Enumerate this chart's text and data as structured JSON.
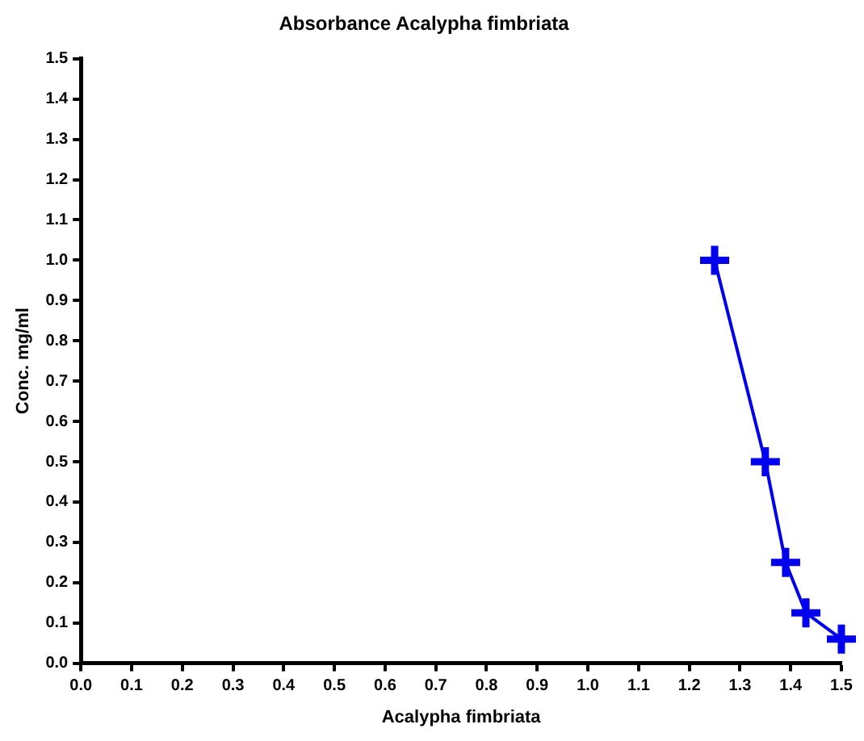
{
  "chart_data": {
    "type": "line",
    "title": "Absorbance Acalypha fimbriata",
    "xlabel": "Acalypha fimbriata",
    "ylabel": "Conc. mg/ml",
    "x": [
      1.25,
      1.35,
      1.39,
      1.43,
      1.5
    ],
    "series": [
      {
        "color": "#0000ee",
        "values": [
          1.0,
          0.5,
          0.25,
          0.125,
          0.06
        ]
      }
    ],
    "xlim": [
      0,
      1.5
    ],
    "xticks": [
      {
        "value": 0,
        "label": "0.0"
      },
      0.1,
      0.2,
      0.3,
      0.4,
      0.5,
      0.6,
      0.7,
      0.8,
      0.9,
      {
        "value": 1,
        "label": "1.0"
      },
      1.1,
      1.2,
      1.3,
      1.4,
      1.5
    ],
    "ylim": [
      0,
      1.5
    ],
    "yticks": [
      {
        "value": 0,
        "label": "0.0"
      },
      0.1,
      0.2,
      0.3,
      0.4,
      0.5,
      0.6,
      0.7,
      0.8,
      0.9,
      {
        "value": 1,
        "label": "1.0"
      },
      1.1,
      1.2,
      1.3,
      1.4,
      1.5
    ],
    "grid": false,
    "legend": false,
    "marker": "cross",
    "line_style": "solid"
  }
}
